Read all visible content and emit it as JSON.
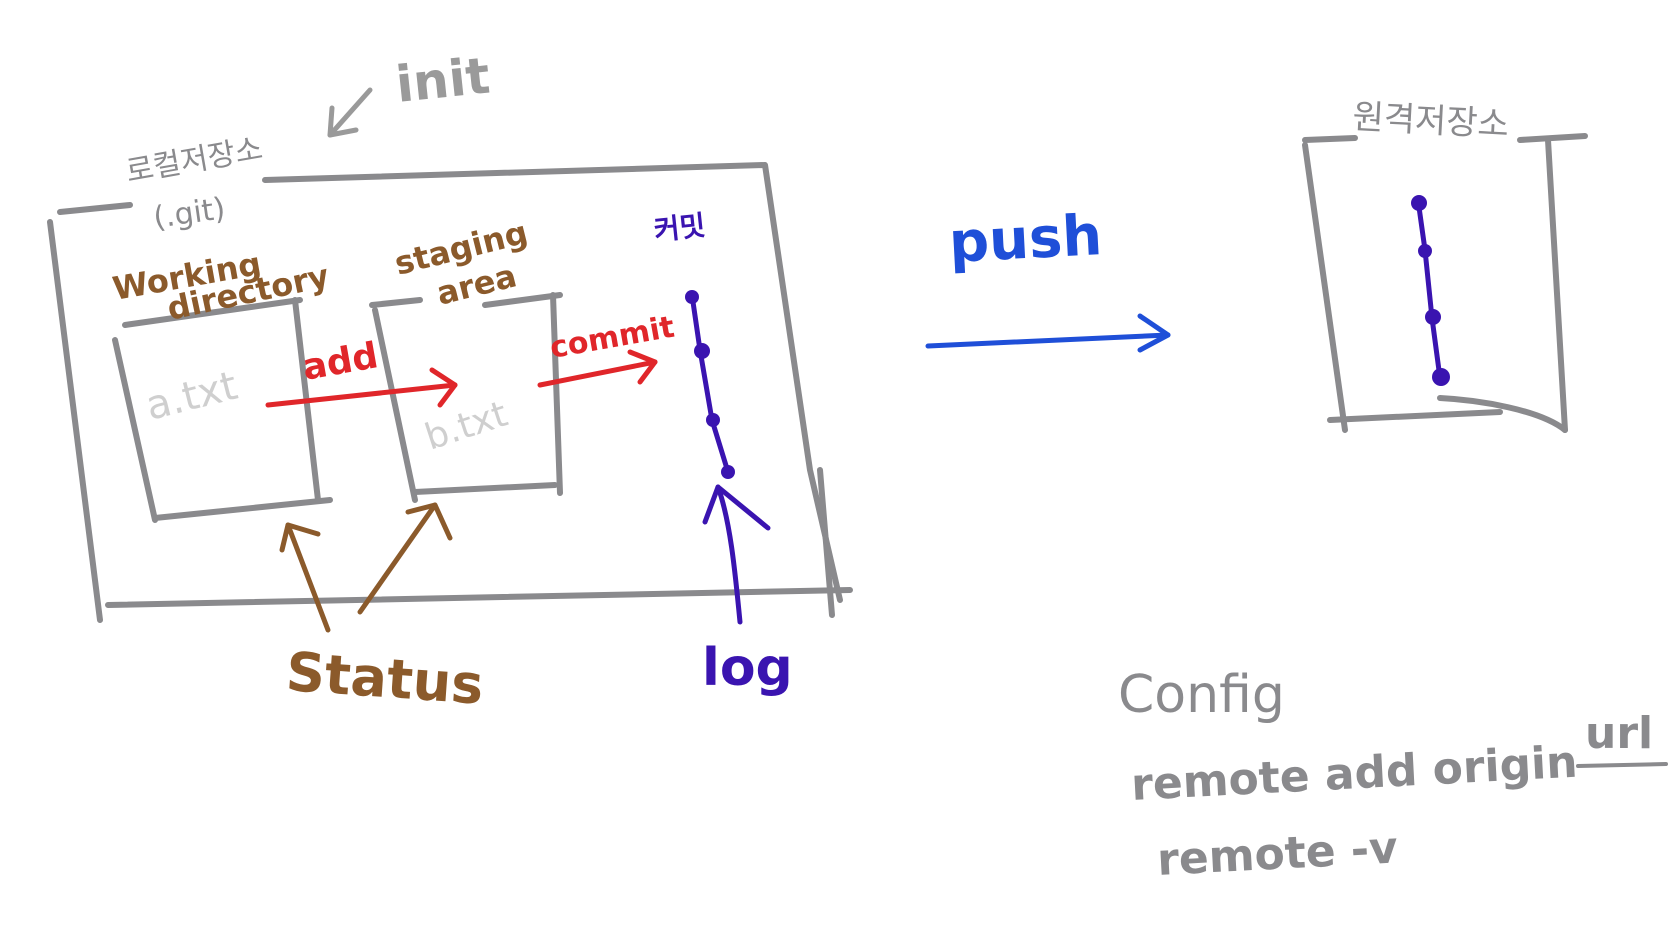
{
  "labels": {
    "init": "init",
    "local_repo": "로컬저장소",
    "local_repo_git": "(.git)",
    "working_directory_1": "Working",
    "working_directory_2": "directory",
    "staging_area_1": "staging",
    "staging_area_2": "area",
    "file_a": "a.txt",
    "file_b": "b.txt",
    "add": "add",
    "commit": "commit",
    "commit_history": "커밋",
    "status": "Status",
    "log": "log",
    "push": "push",
    "remote_repo": "원격저장소",
    "config": "Config",
    "remote_add": "remote add origin",
    "remote_add_url": "url",
    "remote_v": "remote -v"
  },
  "colors": {
    "gray": "#8a8a8d",
    "light_gray": "#cfcfcf",
    "brown": "#8b5a2b",
    "red": "#e0262a",
    "purple": "#3a14b0",
    "blue": "#1f4fd8"
  }
}
